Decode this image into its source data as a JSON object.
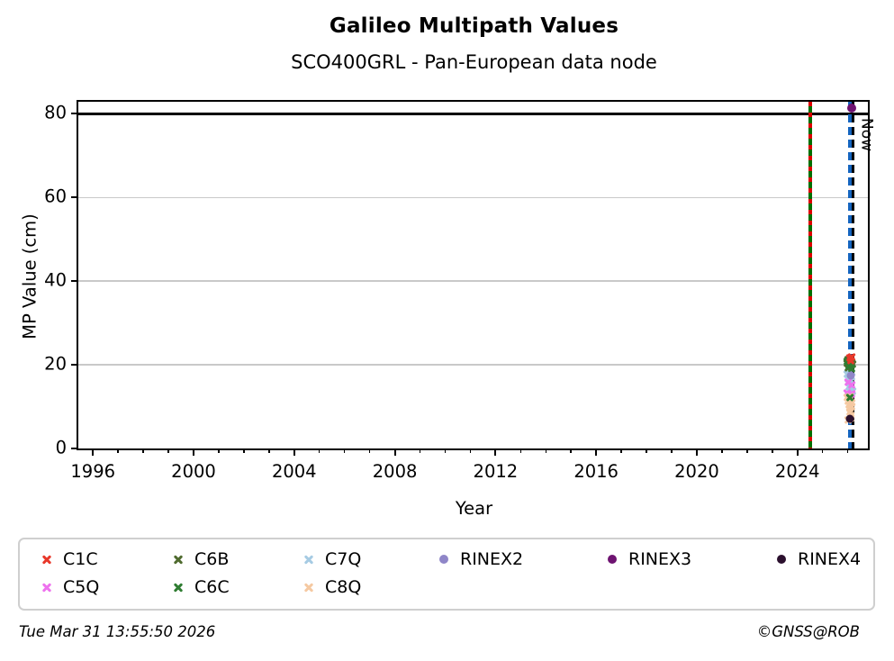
{
  "title": "Galileo Multipath Values",
  "subtitle": "SCO400GRL - Pan-European data node",
  "footer": {
    "timestamp": "Tue Mar 31 13:55:50 2026",
    "copyright": "©GNSS@ROB"
  },
  "chart_data": {
    "type": "scatter",
    "title": "Galileo Multipath Values",
    "subtitle": "SCO400GRL - Pan-European data node",
    "xlabel": "Year",
    "ylabel": "MP Value (cm)",
    "xlim": [
      1995.42,
      2026.8
    ],
    "ylim": [
      0,
      82.9
    ],
    "xticks": [
      1996,
      2000,
      2004,
      2008,
      2012,
      2016,
      2020,
      2024
    ],
    "xticks_minor": [
      1997,
      1998,
      1999,
      2001,
      2002,
      2003,
      2005,
      2006,
      2007,
      2009,
      2010,
      2011,
      2013,
      2014,
      2015,
      2017,
      2018,
      2019,
      2021,
      2022,
      2023,
      2025,
      2026
    ],
    "yticks": [
      0,
      20,
      40,
      60,
      80
    ],
    "ygrid": [
      20,
      40,
      60
    ],
    "grid_color": "#c9c9c9",
    "legend_position": "bottom",
    "threshold_line": {
      "y": 80,
      "color": "#000000"
    },
    "event_line": {
      "x": 2024.5,
      "solid_color": "#007000",
      "dash_color": "#dd0000"
    },
    "now_line": {
      "x": 2026.13,
      "label": "Now",
      "blue_color": "#1565c0",
      "black_color": "#000000",
      "label_y": 79.0
    },
    "legend_order": [
      "C1C",
      "C6B",
      "C7Q",
      "RINEX2",
      "RINEX3",
      "RINEX4",
      "C5Q",
      "C6C",
      "C8Q"
    ],
    "series": [
      {
        "name": "C7Q",
        "marker": "x",
        "color": "#a6cbe3",
        "points": [
          [
            2025.98,
            17.9
          ],
          [
            2026.01,
            16.8
          ],
          [
            2026.04,
            18.3
          ],
          [
            2026.06,
            15.9
          ],
          [
            2026.09,
            15.1
          ],
          [
            2026.11,
            16.4
          ],
          [
            2026.13,
            14.3
          ],
          [
            2026.16,
            17.1
          ],
          [
            2026.18,
            13.7
          ],
          [
            2026.05,
            14.8
          ]
        ]
      },
      {
        "name": "C5Q",
        "marker": "x",
        "color": "#ee72ee",
        "points": [
          [
            2025.97,
            13.4
          ],
          [
            2026.02,
            15.9
          ],
          [
            2026.08,
            12.8
          ],
          [
            2026.14,
            15.3
          ],
          [
            2026.17,
            13.0
          ]
        ]
      },
      {
        "name": "C8Q",
        "marker": "x",
        "color": "#f5c9a2",
        "points": [
          [
            2025.99,
            12.2
          ],
          [
            2026.02,
            11.3
          ],
          [
            2026.05,
            10.5
          ],
          [
            2026.07,
            9.6
          ],
          [
            2026.09,
            8.8
          ],
          [
            2026.11,
            8.0
          ],
          [
            2026.13,
            7.3
          ],
          [
            2026.15,
            10.1
          ],
          [
            2026.17,
            11.0
          ],
          [
            2026.03,
            6.9
          ],
          [
            2026.1,
            12.5
          ]
        ]
      },
      {
        "name": "C6B",
        "marker": "x",
        "color": "#4f6b2f",
        "points": [
          [
            2025.96,
            20.4
          ],
          [
            2026.0,
            21.2
          ],
          [
            2026.03,
            19.4
          ],
          [
            2026.06,
            20.0
          ],
          [
            2026.09,
            21.0
          ],
          [
            2026.12,
            19.7
          ],
          [
            2026.15,
            20.7
          ],
          [
            2026.18,
            20.1
          ]
        ]
      },
      {
        "name": "C6C",
        "marker": "x",
        "color": "#2f7d32",
        "points": [
          [
            2025.99,
            20.9
          ],
          [
            2026.04,
            19.8
          ],
          [
            2026.09,
            20.4
          ],
          [
            2026.14,
            19.2
          ],
          [
            2026.07,
            12.3
          ]
        ]
      },
      {
        "name": "C1C",
        "marker": "x",
        "color": "#e8382a",
        "points": [
          [
            2026.08,
            21.6
          ],
          [
            2026.16,
            21.9
          ],
          [
            2026.13,
            21.1
          ]
        ]
      },
      {
        "name": "RINEX2",
        "marker": "dot",
        "color": "#8f86c8",
        "size": 9,
        "points": [
          [
            2026.11,
            17.5
          ]
        ]
      },
      {
        "name": "RINEX4",
        "marker": "dot",
        "color": "#2b102e",
        "size": 9,
        "points": [
          [
            2026.07,
            7.0
          ]
        ]
      },
      {
        "name": "RINEX3",
        "marker": "dot",
        "color": "#6e1371",
        "size": 10,
        "points": [
          [
            2026.14,
            81.3
          ]
        ]
      }
    ]
  }
}
